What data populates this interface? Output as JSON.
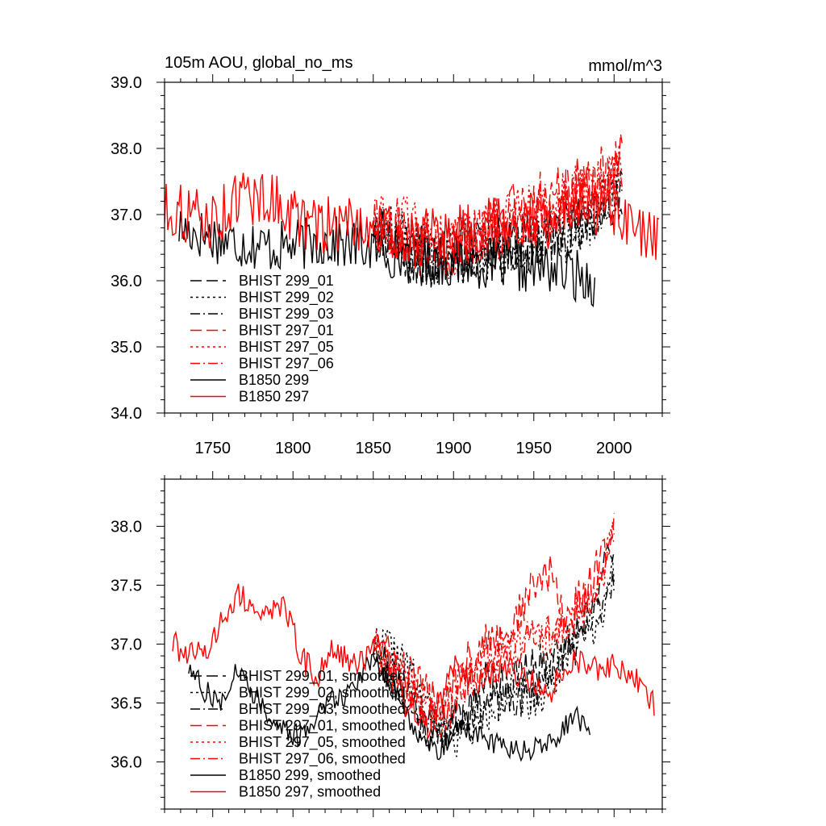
{
  "chart_data": [
    {
      "type": "line",
      "title": "105m AOU, global_no_ms",
      "units_label": "mmol/m^3",
      "xlim": [
        1720,
        2030
      ],
      "ylim": [
        34.0,
        39.0
      ],
      "xticks": [
        1750,
        1800,
        1850,
        1900,
        1950,
        2000
      ],
      "yticks": [
        34.0,
        35.0,
        36.0,
        37.0,
        38.0,
        39.0
      ],
      "ytick_labels": [
        "34.0",
        "35.0",
        "36.0",
        "37.0",
        "38.0",
        "39.0"
      ],
      "grid": false,
      "legend_position": "bottom-left",
      "series": [
        {
          "name": "BHIST 299_01",
          "color": "#000000",
          "dash": "long-dash",
          "x_start": 1850,
          "x_end": 2005,
          "base": [
            [
              1850,
              36.9
            ],
            [
              1870,
              36.4
            ],
            [
              1890,
              36.3
            ],
            [
              1910,
              36.4
            ],
            [
              1930,
              36.6
            ],
            [
              1950,
              36.6
            ],
            [
              1970,
              36.8
            ],
            [
              1990,
              37.0
            ],
            [
              2005,
              37.5
            ]
          ],
          "amp": 0.45,
          "seed": 11
        },
        {
          "name": "BHIST 299_02",
          "color": "#000000",
          "dash": "dot",
          "x_start": 1850,
          "x_end": 2005,
          "base": [
            [
              1850,
              36.9
            ],
            [
              1870,
              36.6
            ],
            [
              1890,
              36.4
            ],
            [
              1910,
              36.4
            ],
            [
              1930,
              36.4
            ],
            [
              1950,
              36.5
            ],
            [
              1970,
              36.7
            ],
            [
              1990,
              37.0
            ],
            [
              2005,
              37.5
            ]
          ],
          "amp": 0.45,
          "seed": 12
        },
        {
          "name": "BHIST 299_03",
          "color": "#000000",
          "dash": "dash-dot",
          "x_start": 1850,
          "x_end": 2005,
          "base": [
            [
              1850,
              36.8
            ],
            [
              1870,
              36.5
            ],
            [
              1890,
              36.3
            ],
            [
              1910,
              36.6
            ],
            [
              1930,
              36.5
            ],
            [
              1950,
              36.6
            ],
            [
              1970,
              36.8
            ],
            [
              1990,
              37.0
            ],
            [
              2005,
              37.4
            ]
          ],
          "amp": 0.45,
          "seed": 13
        },
        {
          "name": "BHIST 297_01",
          "color": "#ff0000",
          "dash": "long-dash",
          "x_start": 1850,
          "x_end": 2005,
          "base": [
            [
              1850,
              37.0
            ],
            [
              1870,
              36.7
            ],
            [
              1890,
              36.4
            ],
            [
              1910,
              36.7
            ],
            [
              1930,
              37.0
            ],
            [
              1950,
              37.2
            ],
            [
              1970,
              37.3
            ],
            [
              1990,
              37.5
            ],
            [
              2005,
              37.8
            ]
          ],
          "amp": 0.5,
          "seed": 14
        },
        {
          "name": "BHIST 297_05",
          "color": "#ff0000",
          "dash": "dot",
          "x_start": 1850,
          "x_end": 2005,
          "base": [
            [
              1850,
              37.0
            ],
            [
              1870,
              36.8
            ],
            [
              1890,
              36.5
            ],
            [
              1910,
              36.6
            ],
            [
              1930,
              36.9
            ],
            [
              1950,
              37.0
            ],
            [
              1970,
              37.2
            ],
            [
              1990,
              37.4
            ],
            [
              2005,
              37.6
            ]
          ],
          "amp": 0.5,
          "seed": 15
        },
        {
          "name": "BHIST 297_06",
          "color": "#ff0000",
          "dash": "dash-dot",
          "x_start": 1850,
          "x_end": 2005,
          "base": [
            [
              1850,
              37.0
            ],
            [
              1870,
              36.7
            ],
            [
              1890,
              36.4
            ],
            [
              1910,
              36.6
            ],
            [
              1930,
              36.8
            ],
            [
              1950,
              37.0
            ],
            [
              1970,
              37.2
            ],
            [
              1990,
              37.4
            ],
            [
              2005,
              37.7
            ]
          ],
          "amp": 0.5,
          "seed": 16
        },
        {
          "name": "B1850 299",
          "color": "#000000",
          "dash": "solid",
          "x_start": 1729,
          "x_end": 1988,
          "base": [
            [
              1729,
              36.8
            ],
            [
              1760,
              36.6
            ],
            [
              1790,
              36.5
            ],
            [
              1820,
              36.6
            ],
            [
              1850,
              36.5
            ],
            [
              1880,
              36.3
            ],
            [
              1910,
              36.3
            ],
            [
              1940,
              36.2
            ],
            [
              1960,
              36.2
            ],
            [
              1988,
              36.0
            ]
          ],
          "amp": 0.4,
          "seed": 17
        },
        {
          "name": "B1850 297",
          "color": "#ff0000",
          "dash": "solid",
          "x_start": 1720,
          "x_end": 2028,
          "base": [
            [
              1720,
              37.1
            ],
            [
              1750,
              36.9
            ],
            [
              1770,
              37.3
            ],
            [
              1790,
              37.2
            ],
            [
              1810,
              36.8
            ],
            [
              1840,
              36.9
            ],
            [
              1870,
              36.6
            ],
            [
              1900,
              36.7
            ],
            [
              1930,
              36.9
            ],
            [
              1960,
              36.9
            ],
            [
              1990,
              37.1
            ],
            [
              2010,
              36.8
            ],
            [
              2028,
              36.5
            ]
          ],
          "amp": 0.45,
          "seed": 18
        }
      ]
    },
    {
      "type": "line",
      "title": "",
      "xlim": [
        1720,
        2030
      ],
      "ylim": [
        35.6,
        38.4
      ],
      "xticks": [
        1750,
        1800,
        1850,
        1900,
        1950,
        2000
      ],
      "yticks": [
        36.0,
        36.5,
        37.0,
        37.5,
        38.0
      ],
      "ytick_labels": [
        "36.0",
        "36.5",
        "37.0",
        "37.5",
        "38.0"
      ],
      "grid": false,
      "legend_position": "bottom-left",
      "series": [
        {
          "name": "BHIST 299_01, smoothed",
          "color": "#000000",
          "dash": "long-dash",
          "x_start": 1850,
          "x_end": 2000,
          "base": [
            [
              1850,
              37.0
            ],
            [
              1860,
              36.8
            ],
            [
              1875,
              36.4
            ],
            [
              1890,
              36.2
            ],
            [
              1905,
              36.4
            ],
            [
              1920,
              36.7
            ],
            [
              1935,
              36.7
            ],
            [
              1950,
              36.8
            ],
            [
              1965,
              36.9
            ],
            [
              1980,
              37.2
            ],
            [
              1990,
              37.5
            ],
            [
              2000,
              37.8
            ]
          ],
          "amp": 0.18,
          "seed": 21
        },
        {
          "name": "BHIST 299_02, smoothed",
          "color": "#000000",
          "dash": "dot",
          "x_start": 1850,
          "x_end": 2000,
          "base": [
            [
              1850,
              37.0
            ],
            [
              1860,
              37.0
            ],
            [
              1875,
              36.7
            ],
            [
              1890,
              36.3
            ],
            [
              1905,
              36.2
            ],
            [
              1920,
              36.4
            ],
            [
              1935,
              36.6
            ],
            [
              1950,
              36.5
            ],
            [
              1965,
              36.8
            ],
            [
              1980,
              37.1
            ],
            [
              1990,
              37.2
            ],
            [
              2000,
              37.6
            ]
          ],
          "amp": 0.18,
          "seed": 22
        },
        {
          "name": "BHIST 299_03, smoothed",
          "color": "#000000",
          "dash": "dash-dot",
          "x_start": 1850,
          "x_end": 2000,
          "base": [
            [
              1850,
              36.9
            ],
            [
              1860,
              36.7
            ],
            [
              1875,
              36.5
            ],
            [
              1890,
              36.3
            ],
            [
              1905,
              36.4
            ],
            [
              1920,
              36.5
            ],
            [
              1935,
              36.5
            ],
            [
              1950,
              36.6
            ],
            [
              1965,
              36.9
            ],
            [
              1980,
              37.0
            ],
            [
              1990,
              37.3
            ],
            [
              2000,
              37.6
            ]
          ],
          "amp": 0.18,
          "seed": 23
        },
        {
          "name": "BHIST 297_01, smoothed",
          "color": "#ff0000",
          "dash": "long-dash",
          "x_start": 1850,
          "x_end": 2000,
          "base": [
            [
              1850,
              37.1
            ],
            [
              1860,
              36.9
            ],
            [
              1875,
              36.7
            ],
            [
              1890,
              36.5
            ],
            [
              1905,
              36.8
            ],
            [
              1920,
              37.0
            ],
            [
              1935,
              37.1
            ],
            [
              1950,
              37.5
            ],
            [
              1960,
              37.6
            ],
            [
              1970,
              37.2
            ],
            [
              1985,
              37.5
            ],
            [
              2000,
              38.0
            ]
          ],
          "amp": 0.18,
          "seed": 24
        },
        {
          "name": "BHIST 297_05, smoothed",
          "color": "#ff0000",
          "dash": "dot",
          "x_start": 1850,
          "x_end": 2000,
          "base": [
            [
              1850,
              37.0
            ],
            [
              1860,
              36.8
            ],
            [
              1875,
              36.6
            ],
            [
              1890,
              36.4
            ],
            [
              1905,
              36.7
            ],
            [
              1920,
              36.9
            ],
            [
              1935,
              37.0
            ],
            [
              1950,
              37.0
            ],
            [
              1965,
              37.1
            ],
            [
              1980,
              37.3
            ],
            [
              1990,
              37.5
            ],
            [
              2000,
              37.9
            ]
          ],
          "amp": 0.18,
          "seed": 25
        },
        {
          "name": "BHIST 297_06, smoothed",
          "color": "#ff0000",
          "dash": "dash-dot",
          "x_start": 1850,
          "x_end": 2000,
          "base": [
            [
              1850,
              37.0
            ],
            [
              1860,
              36.8
            ],
            [
              1875,
              36.6
            ],
            [
              1890,
              36.3
            ],
            [
              1905,
              36.6
            ],
            [
              1920,
              36.8
            ],
            [
              1935,
              36.9
            ],
            [
              1950,
              37.1
            ],
            [
              1965,
              37.1
            ],
            [
              1980,
              37.3
            ],
            [
              1990,
              37.5
            ],
            [
              2000,
              37.9
            ]
          ],
          "amp": 0.18,
          "seed": 26
        },
        {
          "name": "B1850 299, smoothed",
          "color": "#000000",
          "dash": "solid",
          "x_start": 1735,
          "x_end": 1985,
          "base": [
            [
              1735,
              36.8
            ],
            [
              1745,
              36.6
            ],
            [
              1755,
              36.5
            ],
            [
              1765,
              36.8
            ],
            [
              1775,
              36.6
            ],
            [
              1790,
              36.3
            ],
            [
              1805,
              36.2
            ],
            [
              1820,
              36.5
            ],
            [
              1835,
              36.6
            ],
            [
              1850,
              36.9
            ],
            [
              1860,
              36.7
            ],
            [
              1875,
              36.3
            ],
            [
              1890,
              36.1
            ],
            [
              1905,
              36.3
            ],
            [
              1920,
              36.2
            ],
            [
              1935,
              36.1
            ],
            [
              1950,
              36.1
            ],
            [
              1965,
              36.2
            ],
            [
              1975,
              36.4
            ],
            [
              1985,
              36.3
            ]
          ],
          "amp": 0.1,
          "seed": 27
        },
        {
          "name": "B1850 297, smoothed",
          "color": "#ff0000",
          "dash": "solid",
          "x_start": 1725,
          "x_end": 2025,
          "base": [
            [
              1725,
              37.0
            ],
            [
              1735,
              36.9
            ],
            [
              1745,
              36.9
            ],
            [
              1755,
              37.2
            ],
            [
              1765,
              37.4
            ],
            [
              1780,
              37.3
            ],
            [
              1795,
              37.3
            ],
            [
              1805,
              36.9
            ],
            [
              1815,
              36.7
            ],
            [
              1825,
              37.0
            ],
            [
              1840,
              36.8
            ],
            [
              1855,
              37.0
            ],
            [
              1870,
              36.5
            ],
            [
              1885,
              36.3
            ],
            [
              1900,
              36.8
            ],
            [
              1915,
              36.7
            ],
            [
              1930,
              36.8
            ],
            [
              1945,
              36.7
            ],
            [
              1960,
              36.6
            ],
            [
              1975,
              36.9
            ],
            [
              1985,
              36.8
            ],
            [
              2000,
              36.8
            ],
            [
              2015,
              36.7
            ],
            [
              2025,
              36.5
            ]
          ],
          "amp": 0.12,
          "seed": 28
        }
      ]
    }
  ]
}
